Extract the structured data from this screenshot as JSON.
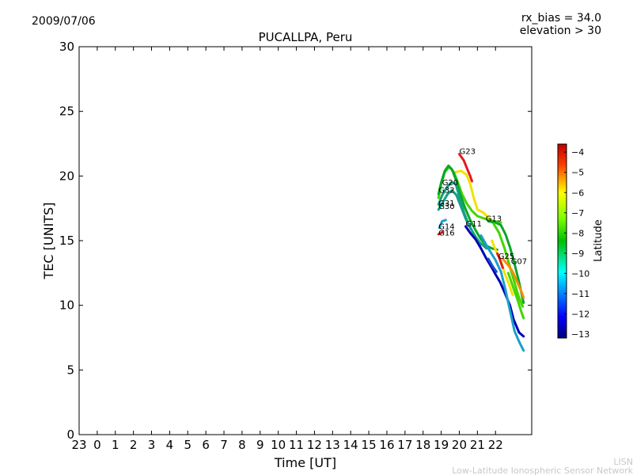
{
  "header": {
    "date": "2009/07/06",
    "rx_bias": "rx_bias = 34.0",
    "elevation": "elevation > 30"
  },
  "footer": {
    "line1": "LISN",
    "line2": "Low-Latitude Ionospheric Sensor Network"
  },
  "colors": {
    "c_red": "#e41a1c",
    "c_orange": "#ff8c00",
    "c_yellow": "#f2e100",
    "c_lgreen": "#45d400",
    "c_green": "#0aa62a",
    "c_teal": "#14a084",
    "c_cyan": "#1aa0c8",
    "c_blue": "#1450c8",
    "c_navy": "#0000b4"
  },
  "chart_data": {
    "type": "line",
    "title": "PUCALLPA, Peru",
    "xlabel": "Time [UT]",
    "ylabel": "TEC [UNITS]",
    "ylim": [
      0,
      30
    ],
    "xlim": [
      -1,
      24
    ],
    "x_ticks": [
      -1,
      0,
      1,
      2,
      3,
      4,
      5,
      6,
      7,
      8,
      9,
      10,
      11,
      12,
      13,
      14,
      15,
      16,
      17,
      18,
      19,
      20,
      21,
      22
    ],
    "x_tick_labels": [
      "23",
      "0",
      "1",
      "2",
      "3",
      "4",
      "5",
      "6",
      "7",
      "8",
      "9",
      "10",
      "11",
      "12",
      "13",
      "14",
      "15",
      "16",
      "17",
      "18",
      "19",
      "20",
      "21",
      "22"
    ],
    "y_ticks": [
      0,
      5,
      10,
      15,
      20,
      25,
      30
    ],
    "y_tick_labels": [
      "0",
      "5",
      "10",
      "15",
      "20",
      "25",
      "30"
    ],
    "grid": false,
    "colorbar": {
      "label": "Latitude",
      "range": [
        -13.2,
        -3.6
      ],
      "ticks": [
        -4,
        -5,
        -6,
        -7,
        -8,
        -9,
        -10,
        -11,
        -12,
        -13
      ],
      "tick_labels": [
        "−4",
        "−5",
        "−6",
        "−7",
        "−8",
        "−9",
        "−10",
        "−11",
        "−12",
        "−13"
      ]
    },
    "satellite_labels": [
      {
        "text": "G23",
        "x": 20.0,
        "y": 21.7
      },
      {
        "text": "G20",
        "x": 19.05,
        "y": 19.3
      },
      {
        "text": "G32",
        "x": 18.85,
        "y": 18.7
      },
      {
        "text": "G31",
        "x": 18.85,
        "y": 17.7
      },
      {
        "text": "G30",
        "x": 18.85,
        "y": 17.45
      },
      {
        "text": "G14",
        "x": 18.85,
        "y": 15.9
      },
      {
        "text": "G16",
        "x": 18.85,
        "y": 15.4
      },
      {
        "text": "G11",
        "x": 20.35,
        "y": 16.1
      },
      {
        "text": "G13",
        "x": 21.45,
        "y": 16.5
      },
      {
        "text": "G25",
        "x": 22.15,
        "y": 13.6
      },
      {
        "text": "G07",
        "x": 22.85,
        "y": 13.2
      }
    ],
    "series": [
      {
        "id": "G23",
        "color_key": "c_red",
        "points": [
          [
            20.0,
            21.7
          ],
          [
            20.25,
            21.2
          ],
          [
            20.45,
            20.5
          ],
          [
            20.6,
            20.0
          ],
          [
            20.7,
            19.6
          ]
        ]
      },
      {
        "id": "G23b",
        "color_key": "c_yellow",
        "points": [
          [
            19.8,
            20.3
          ],
          [
            20.1,
            20.4
          ],
          [
            20.4,
            20.1
          ],
          [
            20.6,
            19.4
          ],
          [
            20.8,
            18.3
          ],
          [
            21.0,
            17.4
          ],
          [
            21.3,
            17.2
          ],
          [
            21.6,
            16.8
          ],
          [
            21.9,
            16.3
          ]
        ]
      },
      {
        "id": "G20",
        "color_key": "c_lgreen",
        "points": [
          [
            18.85,
            18.3
          ],
          [
            19.0,
            19.4
          ],
          [
            19.2,
            20.3
          ],
          [
            19.45,
            20.7
          ],
          [
            19.7,
            20.3
          ],
          [
            19.95,
            19.4
          ],
          [
            20.15,
            18.6
          ],
          [
            20.4,
            17.9
          ],
          [
            20.7,
            17.3
          ],
          [
            21.0,
            16.9
          ],
          [
            21.4,
            16.7
          ],
          [
            21.9,
            16.5
          ],
          [
            22.3,
            16.4
          ]
        ]
      },
      {
        "id": "G32",
        "color_key": "c_green",
        "points": [
          [
            18.85,
            18.6
          ],
          [
            19.0,
            19.5
          ],
          [
            19.2,
            20.4
          ],
          [
            19.4,
            20.8
          ],
          [
            19.6,
            20.5
          ],
          [
            19.85,
            19.6
          ],
          [
            20.05,
            18.6
          ],
          [
            20.3,
            17.6
          ],
          [
            20.6,
            16.6
          ],
          [
            20.9,
            15.8
          ],
          [
            21.2,
            15.1
          ],
          [
            21.5,
            14.6
          ],
          [
            21.8,
            14.4
          ],
          [
            22.1,
            14.3
          ]
        ]
      },
      {
        "id": "G31",
        "color_key": "c_teal",
        "points": [
          [
            18.85,
            17.8
          ],
          [
            19.05,
            18.5
          ],
          [
            19.3,
            19.1
          ],
          [
            19.55,
            19.5
          ],
          [
            19.8,
            19.4
          ],
          [
            20.0,
            18.4
          ],
          [
            20.25,
            17.2
          ],
          [
            20.5,
            16.3
          ],
          [
            20.8,
            15.5
          ],
          [
            21.1,
            14.9
          ],
          [
            21.5,
            14.4
          ]
        ]
      },
      {
        "id": "G30",
        "color_key": "c_teal",
        "points": [
          [
            18.85,
            17.4
          ],
          [
            19.1,
            18.0
          ],
          [
            19.35,
            18.6
          ],
          [
            19.6,
            18.9
          ],
          [
            19.85,
            18.5
          ],
          [
            20.1,
            17.6
          ],
          [
            20.35,
            16.7
          ],
          [
            20.6,
            16.0
          ],
          [
            20.9,
            15.3
          ],
          [
            21.2,
            14.7
          ]
        ]
      },
      {
        "id": "G14",
        "color_key": "c_cyan",
        "points": [
          [
            18.9,
            16.0
          ],
          [
            19.05,
            16.5
          ],
          [
            19.25,
            16.6
          ]
        ]
      },
      {
        "id": "G16",
        "color_key": "c_red",
        "points": [
          [
            18.85,
            15.5
          ],
          [
            19.0,
            15.6
          ],
          [
            19.1,
            15.7
          ]
        ]
      },
      {
        "id": "G11",
        "color_key": "c_navy",
        "points": [
          [
            20.35,
            16.1
          ],
          [
            20.6,
            15.6
          ],
          [
            20.9,
            15.1
          ],
          [
            21.2,
            14.4
          ],
          [
            21.5,
            13.6
          ],
          [
            21.8,
            12.9
          ],
          [
            22.0,
            12.4
          ],
          [
            22.25,
            11.8
          ],
          [
            22.5,
            11.0
          ],
          [
            22.8,
            10.0
          ],
          [
            23.0,
            8.9
          ],
          [
            23.3,
            7.9
          ],
          [
            23.55,
            7.6
          ]
        ]
      },
      {
        "id": "G11b",
        "color_key": "c_cyan",
        "points": [
          [
            21.2,
            15.4
          ],
          [
            21.6,
            14.4
          ],
          [
            22.0,
            13.5
          ],
          [
            22.3,
            12.6
          ],
          [
            22.55,
            11.2
          ],
          [
            22.8,
            9.6
          ],
          [
            23.05,
            8.0
          ],
          [
            23.3,
            7.2
          ],
          [
            23.55,
            6.5
          ]
        ]
      },
      {
        "id": "G11c",
        "color_key": "c_blue",
        "points": [
          [
            21.6,
            13.6
          ],
          [
            21.85,
            13.0
          ],
          [
            22.05,
            12.6
          ]
        ]
      },
      {
        "id": "G13",
        "color_key": "c_green",
        "points": [
          [
            21.6,
            16.5
          ],
          [
            22.0,
            16.4
          ],
          [
            22.3,
            16.2
          ],
          [
            22.55,
            15.5
          ],
          [
            22.8,
            14.5
          ],
          [
            23.05,
            13.2
          ],
          [
            23.3,
            11.8
          ],
          [
            23.55,
            10.2
          ]
        ]
      },
      {
        "id": "G13b",
        "color_key": "c_lgreen",
        "points": [
          [
            21.9,
            16.3
          ],
          [
            22.2,
            15.6
          ],
          [
            22.5,
            14.4
          ],
          [
            22.75,
            13.2
          ],
          [
            23.0,
            12.0
          ],
          [
            23.25,
            10.8
          ],
          [
            23.5,
            9.9
          ]
        ]
      },
      {
        "id": "G25",
        "color_key": "c_yellow",
        "points": [
          [
            21.8,
            15.0
          ],
          [
            22.0,
            14.3
          ],
          [
            22.25,
            13.6
          ],
          [
            22.5,
            12.5
          ],
          [
            22.75,
            11.6
          ],
          [
            22.95,
            10.8
          ]
        ]
      },
      {
        "id": "G25b",
        "color_key": "c_red",
        "points": [
          [
            22.1,
            14.0
          ],
          [
            22.2,
            13.7
          ],
          [
            22.3,
            13.3
          ],
          [
            22.4,
            12.9
          ]
        ]
      },
      {
        "id": "G07",
        "color_key": "c_orange",
        "points": [
          [
            22.4,
            13.6
          ],
          [
            22.7,
            13.1
          ],
          [
            22.95,
            12.6
          ],
          [
            23.2,
            11.8
          ],
          [
            23.45,
            11.0
          ],
          [
            23.55,
            10.6
          ]
        ]
      },
      {
        "id": "G07b",
        "color_key": "c_lgreen",
        "points": [
          [
            22.7,
            12.5
          ],
          [
            22.95,
            11.5
          ],
          [
            23.2,
            10.5
          ],
          [
            23.4,
            9.6
          ],
          [
            23.55,
            9.0
          ]
        ]
      }
    ]
  }
}
